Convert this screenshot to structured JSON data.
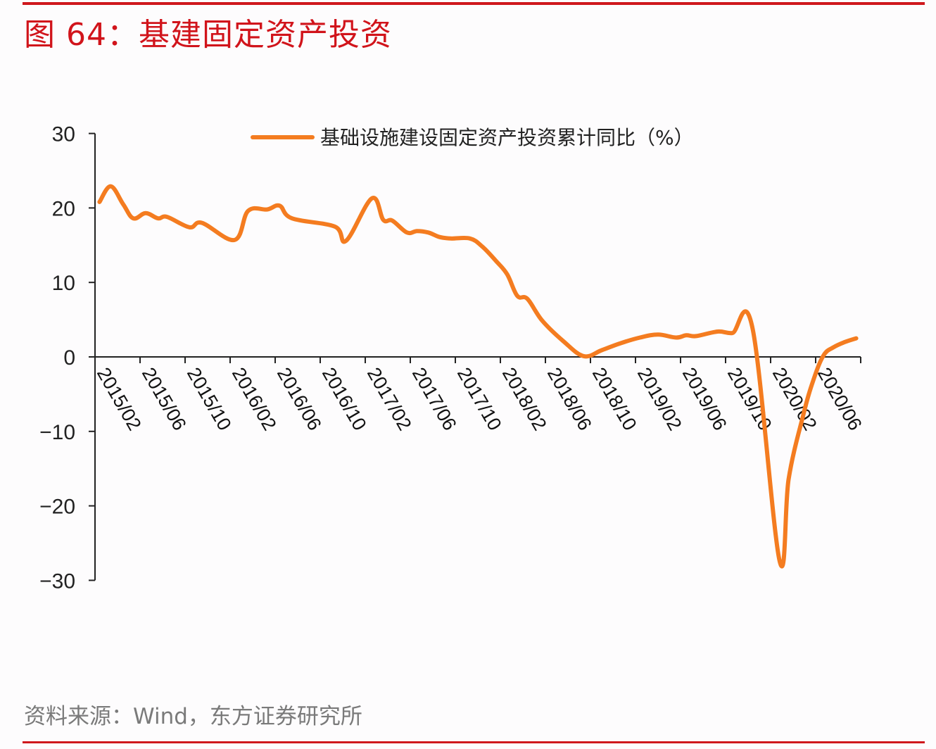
{
  "figure": {
    "title": "图 64：基建固定资产投资",
    "source": "资料来源：Wind，东方证券研究所"
  },
  "colors": {
    "accent_red": "#cf181d",
    "series_orange": "#f47c20",
    "axis": "#222222"
  },
  "chart_data": {
    "type": "line",
    "title": "图 64：基建固定资产投资",
    "xlabel": "",
    "ylabel": "",
    "ylim": [
      -30,
      30
    ],
    "yticks": [
      30,
      20,
      10,
      0,
      -10,
      -20,
      -30
    ],
    "ytick_labels": [
      "30",
      "20",
      "10",
      "0",
      "−10",
      "−20",
      "−30"
    ],
    "grid": false,
    "legend_position": "top-center",
    "categories": [
      "2015/02",
      "2015/06",
      "2015/10",
      "2016/02",
      "2016/06",
      "2016/10",
      "2017/02",
      "2017/06",
      "2017/10",
      "2018/02",
      "2018/06",
      "2018/10",
      "2019/02",
      "2019/06",
      "2019/10",
      "2020/02",
      "2020/06"
    ],
    "x_unit": "months since 2015/02 (axis spans 0–68)",
    "series": [
      {
        "name": "基础设施建设固定资产投资累计同比（%）",
        "color": "#f47c20",
        "points": [
          [
            0.4,
            20.8
          ],
          [
            1.4,
            22.9
          ],
          [
            2.5,
            20.5
          ],
          [
            3.4,
            18.6
          ],
          [
            4.5,
            19.3
          ],
          [
            5.6,
            18.6
          ],
          [
            6.4,
            18.8
          ],
          [
            8.4,
            17.4
          ],
          [
            9.5,
            18.0
          ],
          [
            12.4,
            15.7
          ],
          [
            13.6,
            19.6
          ],
          [
            15.3,
            19.8
          ],
          [
            16.4,
            20.3
          ],
          [
            17.5,
            18.6
          ],
          [
            21.3,
            17.5
          ],
          [
            22.3,
            15.6
          ],
          [
            24.6,
            21.3
          ],
          [
            25.6,
            18.4
          ],
          [
            26.4,
            18.3
          ],
          [
            27.7,
            16.7
          ],
          [
            28.6,
            16.9
          ],
          [
            29.6,
            16.7
          ],
          [
            30.6,
            16.1
          ],
          [
            31.6,
            15.9
          ],
          [
            33.3,
            15.9
          ],
          [
            34.4,
            14.8
          ],
          [
            35.6,
            12.9
          ],
          [
            36.6,
            11.1
          ],
          [
            37.5,
            8.2
          ],
          [
            38.4,
            7.8
          ],
          [
            39.7,
            4.9
          ],
          [
            41.6,
            2.1
          ],
          [
            43.4,
            0.1
          ],
          [
            45.0,
            0.9
          ],
          [
            46.6,
            1.8
          ],
          [
            48.4,
            2.6
          ],
          [
            50.0,
            3.0
          ],
          [
            51.6,
            2.6
          ],
          [
            52.5,
            2.9
          ],
          [
            53.4,
            2.8
          ],
          [
            55.3,
            3.4
          ],
          [
            56.6,
            3.2
          ],
          [
            58.4,
            3.8
          ],
          [
            60.8,
            -27.4
          ],
          [
            61.6,
            -16.4
          ],
          [
            62.9,
            -7.8
          ],
          [
            63.8,
            -3.1
          ],
          [
            64.7,
            0.2
          ],
          [
            65.6,
            1.3
          ],
          [
            66.6,
            2.0
          ],
          [
            67.6,
            2.5
          ]
        ]
      }
    ]
  }
}
